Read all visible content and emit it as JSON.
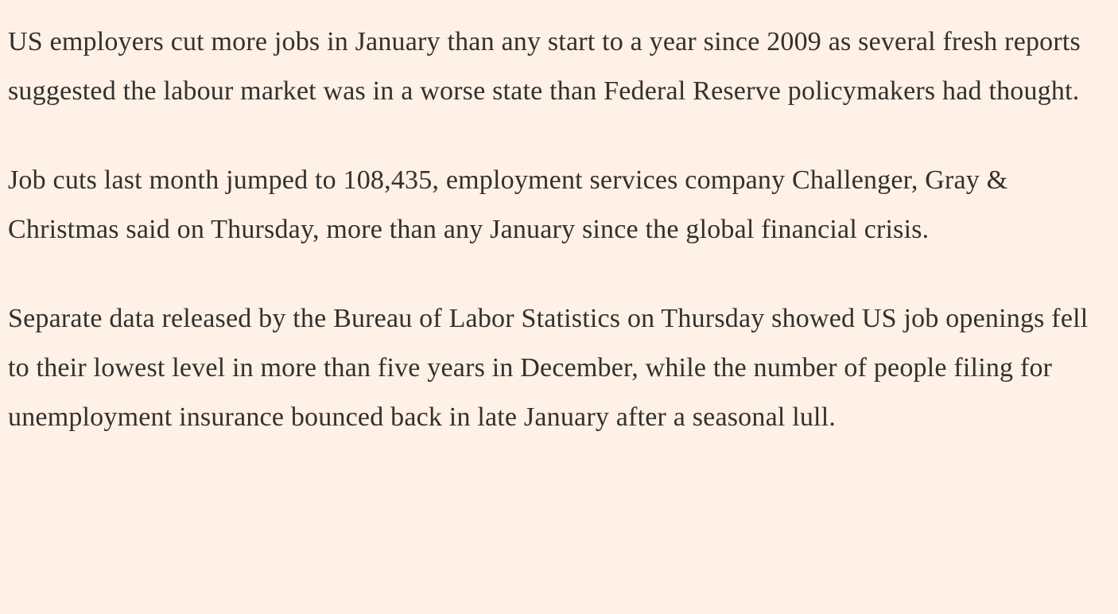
{
  "article": {
    "paragraphs": [
      "US employers cut more jobs in January than any start to a year since 2009 as several fresh reports suggested the labour market was in a worse state than Federal Reserve policymakers had thought.",
      "Job cuts last month jumped to 108,435, employment services company Challenger, Gray & Christmas said on Thursday, more than any January since the global financial crisis.",
      "Separate data released by the Bureau of Labor Statistics on Thursday showed US job openings fell to their lowest level in more than five years in December, while the number of people filing for unemployment insurance bounced back in late January after a seasonal lull."
    ]
  },
  "colors": {
    "background": "#FFF1E5",
    "text": "#33302E"
  }
}
